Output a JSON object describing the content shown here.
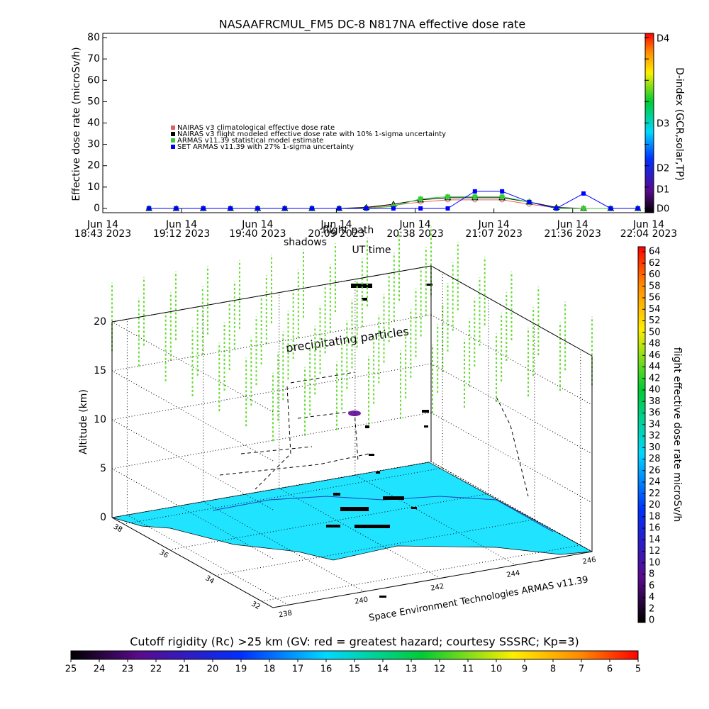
{
  "chart_data": [
    {
      "type": "line",
      "title": "NASAAFRCMUL_FM5 DC-8   N817NA effective dose rate",
      "y_label": "Effective dose rate (microSv/h)",
      "x_label": "UT time",
      "x": [
        "2023-06-14T19:00",
        "2023-06-14T19:10",
        "2023-06-14T19:20",
        "2023-06-14T19:30",
        "2023-06-14T19:40",
        "2023-06-14T19:50",
        "2023-06-14T20:00",
        "2023-06-14T20:10",
        "2023-06-14T20:20",
        "2023-06-14T20:30",
        "2023-06-14T20:40",
        "2023-06-14T20:50",
        "2023-06-14T21:00",
        "2023-06-14T21:10",
        "2023-06-14T21:20",
        "2023-06-14T21:30",
        "2023-06-14T21:40",
        "2023-06-14T21:50",
        "2023-06-14T22:00"
      ],
      "series": [
        {
          "name": "NAIRAS v3 climatological effective dose rate",
          "color": "#e06060",
          "marker": "circle",
          "values": [
            0,
            0,
            0,
            0,
            0,
            0,
            0,
            0,
            0.3,
            1.5,
            3,
            4,
            4,
            4,
            2,
            0.3,
            0,
            0,
            0
          ]
        },
        {
          "name": "NAIRAS v3 flight modeled effective dose rate with 10% 1-sigma uncertainty",
          "color": "#000000",
          "marker": "triangle",
          "values": [
            0,
            0,
            0,
            0,
            0,
            0,
            0,
            0,
            0.5,
            2,
            4,
            5,
            5,
            5,
            3,
            0.5,
            0,
            0,
            0
          ]
        },
        {
          "name": "ARMAS v11.39 statistical model estimate",
          "color": "#33cc33",
          "marker": "star",
          "values": [
            0,
            0,
            0,
            0,
            0,
            0,
            0,
            0,
            0,
            1,
            4.5,
            5.5,
            5.5,
            5.5,
            3,
            0,
            0,
            0,
            0
          ]
        },
        {
          "name": "SET ARMAS v11.39 with 27% 1-sigma uncertainty",
          "color": "#0000ff",
          "marker": "square",
          "values": [
            0,
            0,
            0,
            0,
            0,
            0,
            0,
            0,
            0,
            0,
            0,
            0,
            8,
            8,
            3,
            0,
            7,
            0,
            0
          ]
        }
      ],
      "xlim": [
        "2023-06-14T18:43",
        "2023-06-14T22:04"
      ],
      "xticks": [
        {
          "value": "2023-06-14T18:43",
          "label": [
            "Jun 14",
            "18:43 2023"
          ]
        },
        {
          "value": "2023-06-14T19:12",
          "label": [
            "Jun 14",
            "19:12 2023"
          ]
        },
        {
          "value": "2023-06-14T19:40",
          "label": [
            "Jun 14",
            "19:40 2023"
          ]
        },
        {
          "value": "2023-06-14T20:09",
          "label": [
            "Jun 14",
            "20:09 2023"
          ]
        },
        {
          "value": "2023-06-14T20:38",
          "label": [
            "Jun 14",
            "20:38 2023"
          ]
        },
        {
          "value": "2023-06-14T21:07",
          "label": [
            "Jun 14",
            "21:07 2023"
          ]
        },
        {
          "value": "2023-06-14T21:36",
          "label": [
            "Jun 14",
            "21:36 2023"
          ]
        },
        {
          "value": "2023-06-14T22:04",
          "label": [
            "Jun 14",
            "22:04 2023"
          ]
        }
      ],
      "ylim": [
        -2,
        82
      ],
      "yticks": [
        0,
        10,
        20,
        30,
        40,
        50,
        60,
        70,
        80
      ],
      "legend": "upper left",
      "colorbar": {
        "label": "D-index (GCR,solar,TP)",
        "ticks": [
          "D0",
          "D1",
          "D2",
          "D3",
          "D4"
        ]
      }
    },
    {
      "type": "surface3d",
      "annotations": [
        "shadows",
        "flight path",
        "precipitating particles"
      ],
      "z_label": "Altitude (km)",
      "credit": "Space Environment Technologies ARMAS v11.39",
      "xlim": [
        237.6,
        246
      ],
      "xticks": [
        238,
        240,
        242,
        244,
        246
      ],
      "ylim": [
        31.5,
        38.5
      ],
      "yticks": [
        32,
        34,
        36,
        38
      ],
      "zlim": [
        0,
        20
      ],
      "zticks": [
        0,
        5,
        10,
        15,
        20
      ],
      "colorbar": {
        "label": "flight effective dose rate microSv/h",
        "lim": [
          0,
          64
        ],
        "ticks": [
          0,
          2,
          4,
          6,
          8,
          10,
          12,
          14,
          16,
          18,
          20,
          22,
          24,
          26,
          28,
          30,
          32,
          34,
          36,
          38,
          40,
          42,
          44,
          46,
          48,
          50,
          52,
          54,
          56,
          58,
          60,
          62,
          64
        ]
      },
      "map_colorbar": {
        "label": "Cutoff rigidity (Rc) >25 km (GV: red = greatest hazard; courtesy SSSRC; Kp=3)",
        "lim": [
          25,
          5
        ],
        "ticks": [
          25,
          24,
          23,
          22,
          21,
          20,
          19,
          18,
          17,
          16,
          15,
          14,
          13,
          12,
          11,
          10,
          9,
          8,
          7,
          6,
          5
        ]
      }
    }
  ]
}
